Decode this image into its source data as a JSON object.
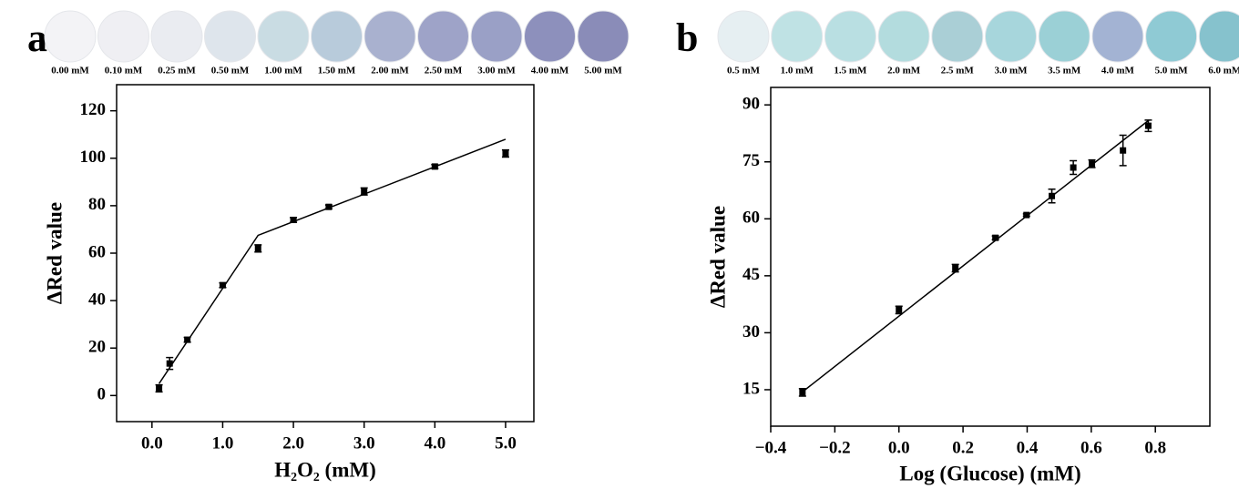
{
  "chart_data": [
    {
      "type": "scatter",
      "panel": "a",
      "swatches": [
        {
          "label": "0.00 mM",
          "color": "#f3f3f6"
        },
        {
          "label": "0.10 mM",
          "color": "#efeff3"
        },
        {
          "label": "0.25 mM",
          "color": "#eaecf1"
        },
        {
          "label": "0.50 mM",
          "color": "#dee5ec"
        },
        {
          "label": "1.00 mM",
          "color": "#c9dce3"
        },
        {
          "label": "1.50 mM",
          "color": "#b8cbdb"
        },
        {
          "label": "2.00 mM",
          "color": "#a9b1cf"
        },
        {
          "label": "2.50 mM",
          "color": "#9ea3c8"
        },
        {
          "label": "3.00 mM",
          "color": "#9aa0c6"
        },
        {
          "label": "4.00 mM",
          "color": "#8d90bc"
        },
        {
          "label": "5.00 mM",
          "color": "#8a8cb8"
        }
      ],
      "x_label": "H₂O₂ (mM)",
      "y_label": "ΔRed value",
      "x": [
        0.1,
        0.25,
        0.5,
        1.0,
        1.5,
        2.0,
        2.5,
        3.0,
        4.0,
        5.0
      ],
      "values": [
        3,
        13.5,
        23.5,
        46.5,
        62,
        74,
        79.5,
        86,
        96.5,
        102
      ],
      "errors": [
        1.5,
        2.5,
        1,
        1,
        1.5,
        1,
        0.8,
        1.5,
        0.8,
        1.5
      ],
      "color": "#000000",
      "fit": {
        "x": [
          0.1,
          1.5,
          5.0
        ],
        "values": [
          5,
          67.5,
          108
        ]
      },
      "xlim": [
        -0.5,
        5.4
      ],
      "ylim": [
        -11,
        131
      ],
      "xticks": [
        {
          "value": 0,
          "label": "0.0"
        },
        {
          "value": 1,
          "label": "1.0"
        },
        {
          "value": 2,
          "label": "2.0"
        },
        {
          "value": 3,
          "label": "3.0"
        },
        {
          "value": 4,
          "label": "4.0"
        },
        {
          "value": 5,
          "label": "5.0"
        }
      ],
      "yticks": [
        0,
        20,
        40,
        60,
        80,
        100,
        120
      ]
    },
    {
      "type": "scatter",
      "panel": "b",
      "swatches": [
        {
          "label": "0.5 mM",
          "color": "#e6eff2"
        },
        {
          "label": "1.0 mM",
          "color": "#bfe2e4"
        },
        {
          "label": "1.5 mM",
          "color": "#b9dfe2"
        },
        {
          "label": "2.0 mM",
          "color": "#b3dcde"
        },
        {
          "label": "2.5 mM",
          "color": "#aacfd6"
        },
        {
          "label": "3.0 mM",
          "color": "#a7d6dc"
        },
        {
          "label": "3.5 mM",
          "color": "#9bd0d6"
        },
        {
          "label": "4.0 mM",
          "color": "#a3b3d3"
        },
        {
          "label": "5.0 mM",
          "color": "#8fcad4"
        },
        {
          "label": "6.0 mM",
          "color": "#86c2cd"
        }
      ],
      "x_label": "Log (Glucose) (mM)",
      "y_label": "ΔRed value",
      "x": [
        -0.301,
        0,
        0.176,
        0.301,
        0.398,
        0.477,
        0.544,
        0.602,
        0.699,
        0.778
      ],
      "values": [
        14.3,
        36,
        47,
        55,
        61,
        66,
        73.5,
        74.5,
        78,
        84.5
      ],
      "errors": [
        1,
        1,
        1,
        0.5,
        0.3,
        1.8,
        1.8,
        1,
        4,
        1.5
      ],
      "color": "#000000",
      "fit": {
        "x": [
          -0.3,
          0.78
        ],
        "values": [
          14.5,
          86
        ]
      },
      "xlim": [
        -0.4,
        0.97
      ],
      "ylim": [
        5.4,
        94.6
      ],
      "xticks": [
        {
          "value": -0.4,
          "label": "−0.4"
        },
        {
          "value": -0.2,
          "label": "−0.2"
        },
        {
          "value": 0,
          "label": "0.0"
        },
        0.2,
        0.4,
        0.6,
        0.8
      ],
      "yticks": [
        15,
        30,
        45,
        60,
        75,
        90
      ]
    }
  ]
}
